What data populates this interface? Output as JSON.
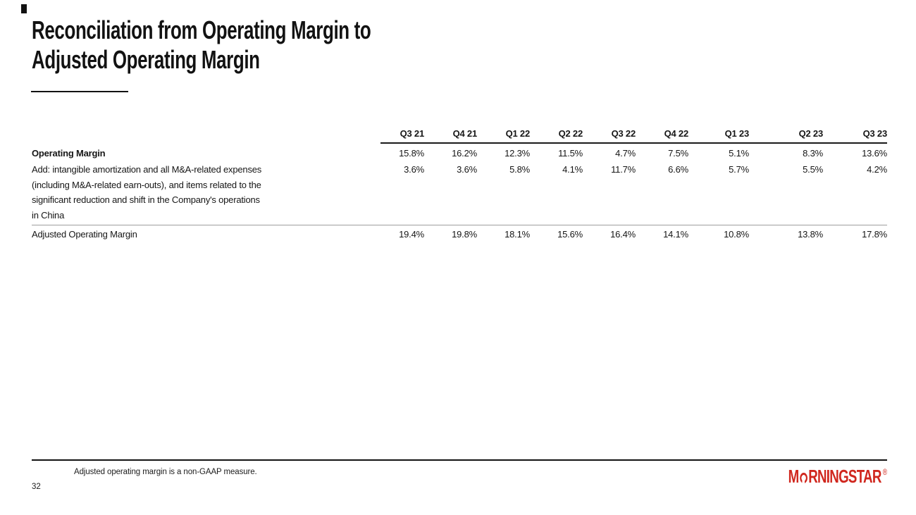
{
  "slide": {
    "title_line1": "Reconciliation from Operating Margin to",
    "title_line2": "Adjusted Operating Margin",
    "page_number": "32",
    "footnote": "Adjusted operating margin is a non-GAAP measure."
  },
  "table": {
    "columns": [
      "Q3 21",
      "Q4 21",
      "Q1 22",
      "Q2 22",
      "Q3 22",
      "Q4 22",
      "Q1 23",
      "Q2 23",
      "Q3 23"
    ],
    "rows": [
      {
        "label": "Operating Margin",
        "values": [
          "15.8%",
          "16.2%",
          "12.3%",
          "11.5%",
          "4.7%",
          "7.5%",
          "5.1%",
          "8.3%",
          "13.6%"
        ]
      },
      {
        "label_lines": [
          "Add: intangible amortization and all M&A-related expenses",
          "(including M&A-related earn-outs), and items related to the",
          "significant reduction and shift in the Company's operations",
          "in China"
        ],
        "values": [
          "3.6%",
          "3.6%",
          "5.8%",
          "4.1%",
          "11.7%",
          "6.6%",
          "5.7%",
          "5.5%",
          "4.2%"
        ]
      },
      {
        "label": "Adjusted Operating Margin",
        "values": [
          "19.4%",
          "19.8%",
          "18.1%",
          "15.6%",
          "16.4%",
          "14.1%",
          "10.8%",
          "13.8%",
          "17.8%"
        ]
      }
    ]
  },
  "footer": {
    "logo_part1": "M",
    "logo_part2": "RNINGSTAR",
    "registered_mark": "®"
  },
  "colors": {
    "brand_red": "#d0271e",
    "text": "#161616",
    "rule_black": "#121212",
    "rule_gray": "#9e9e9e"
  }
}
